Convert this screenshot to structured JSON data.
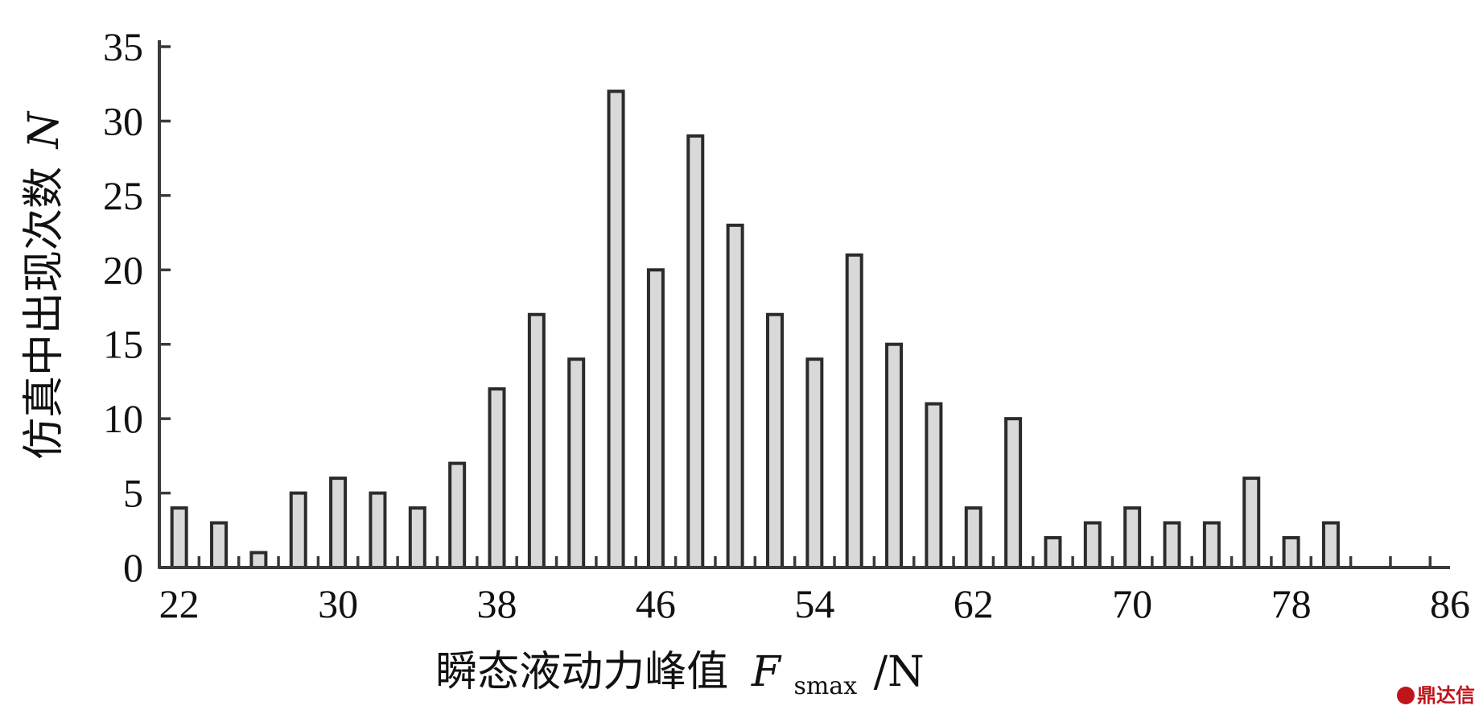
{
  "chart_data": {
    "type": "bar",
    "ylabel": "仿真中出现次数",
    "ylabel_var": "N",
    "xlabel": "瞬态液动力峰值",
    "xlabel_var": "F",
    "xlabel_sub": "smax",
    "xlabel_unit": "/N",
    "xlim": [
      21,
      86
    ],
    "ylim": [
      0,
      35
    ],
    "xticks": [
      22,
      30,
      38,
      46,
      54,
      62,
      70,
      78,
      86
    ],
    "yticks": [
      0,
      5,
      10,
      15,
      20,
      25,
      30,
      35
    ],
    "x": [
      22,
      24,
      26,
      28,
      30,
      32,
      34,
      36,
      38,
      40,
      42,
      44,
      46,
      48,
      50,
      52,
      54,
      56,
      58,
      60,
      62,
      64,
      66,
      68,
      70,
      72,
      74,
      76,
      78,
      80
    ],
    "values": [
      4,
      3,
      1,
      5,
      6,
      5,
      4,
      7,
      12,
      17,
      14,
      32,
      20,
      29,
      23,
      17,
      14,
      21,
      15,
      11,
      4,
      10,
      2,
      3,
      4,
      3,
      3,
      6,
      2,
      3
    ],
    "grid": false,
    "legend": "none"
  },
  "watermark": {
    "text": "鼎达信"
  }
}
